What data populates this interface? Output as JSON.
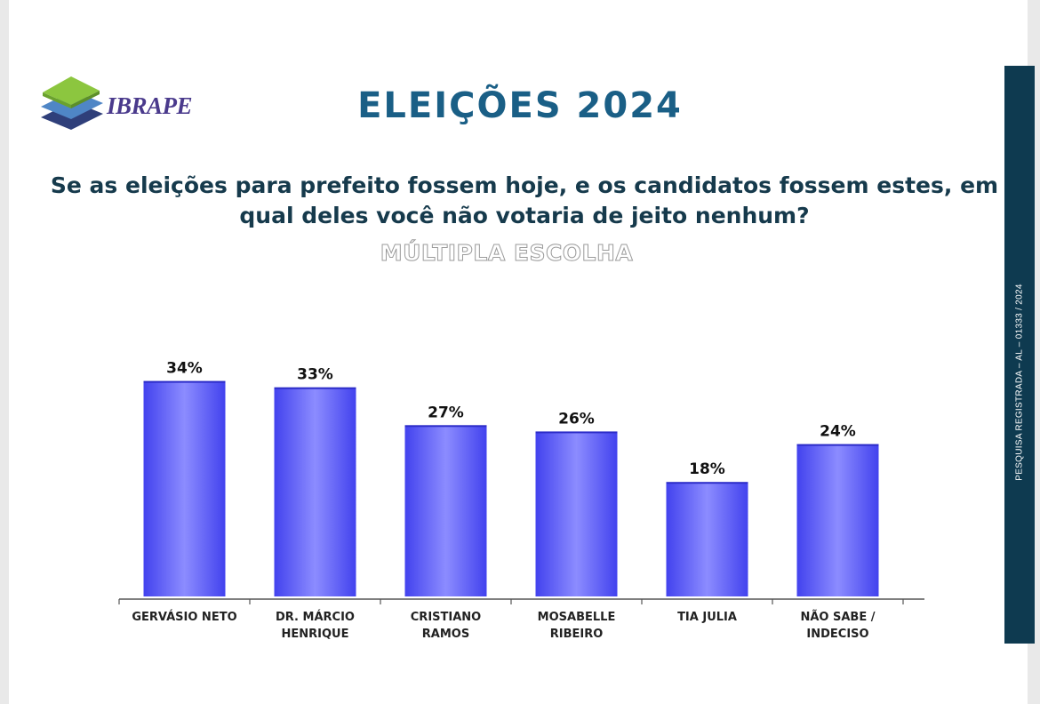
{
  "header": {
    "logo_text": "IBRAPE",
    "title": "ELEIÇÕES 2024",
    "question": "Se as eleições para prefeito fossem hoje, e os candidatos fossem estes, em qual deles você não votaria de jeito nenhum?",
    "subtitle": "MÚLTIPLA ESCOLHA"
  },
  "side_note": "PESQUISA REGISTRADA – AL – 01333 / 2024",
  "colors": {
    "bar": "#4a4af2",
    "bar_highlight": "#8c8cff",
    "title": "#1a5f86",
    "side_bar": "#0e3a50"
  },
  "chart_data": {
    "type": "bar",
    "categories": [
      [
        "GERVÁSIO NETO"
      ],
      [
        "DR. MÁRCIO",
        "HENRIQUE"
      ],
      [
        "CRISTIANO",
        "RAMOS"
      ],
      [
        "MOSABELLE",
        "RIBEIRO"
      ],
      [
        "TIA JULIA"
      ],
      [
        "NÃO SABE /",
        "INDECISO"
      ]
    ],
    "values": [
      34,
      33,
      27,
      26,
      18,
      24
    ],
    "value_labels": [
      "34%",
      "33%",
      "27%",
      "26%",
      "18%",
      "24%"
    ],
    "ylim": [
      0,
      40
    ],
    "grid": false,
    "legend": "none"
  }
}
